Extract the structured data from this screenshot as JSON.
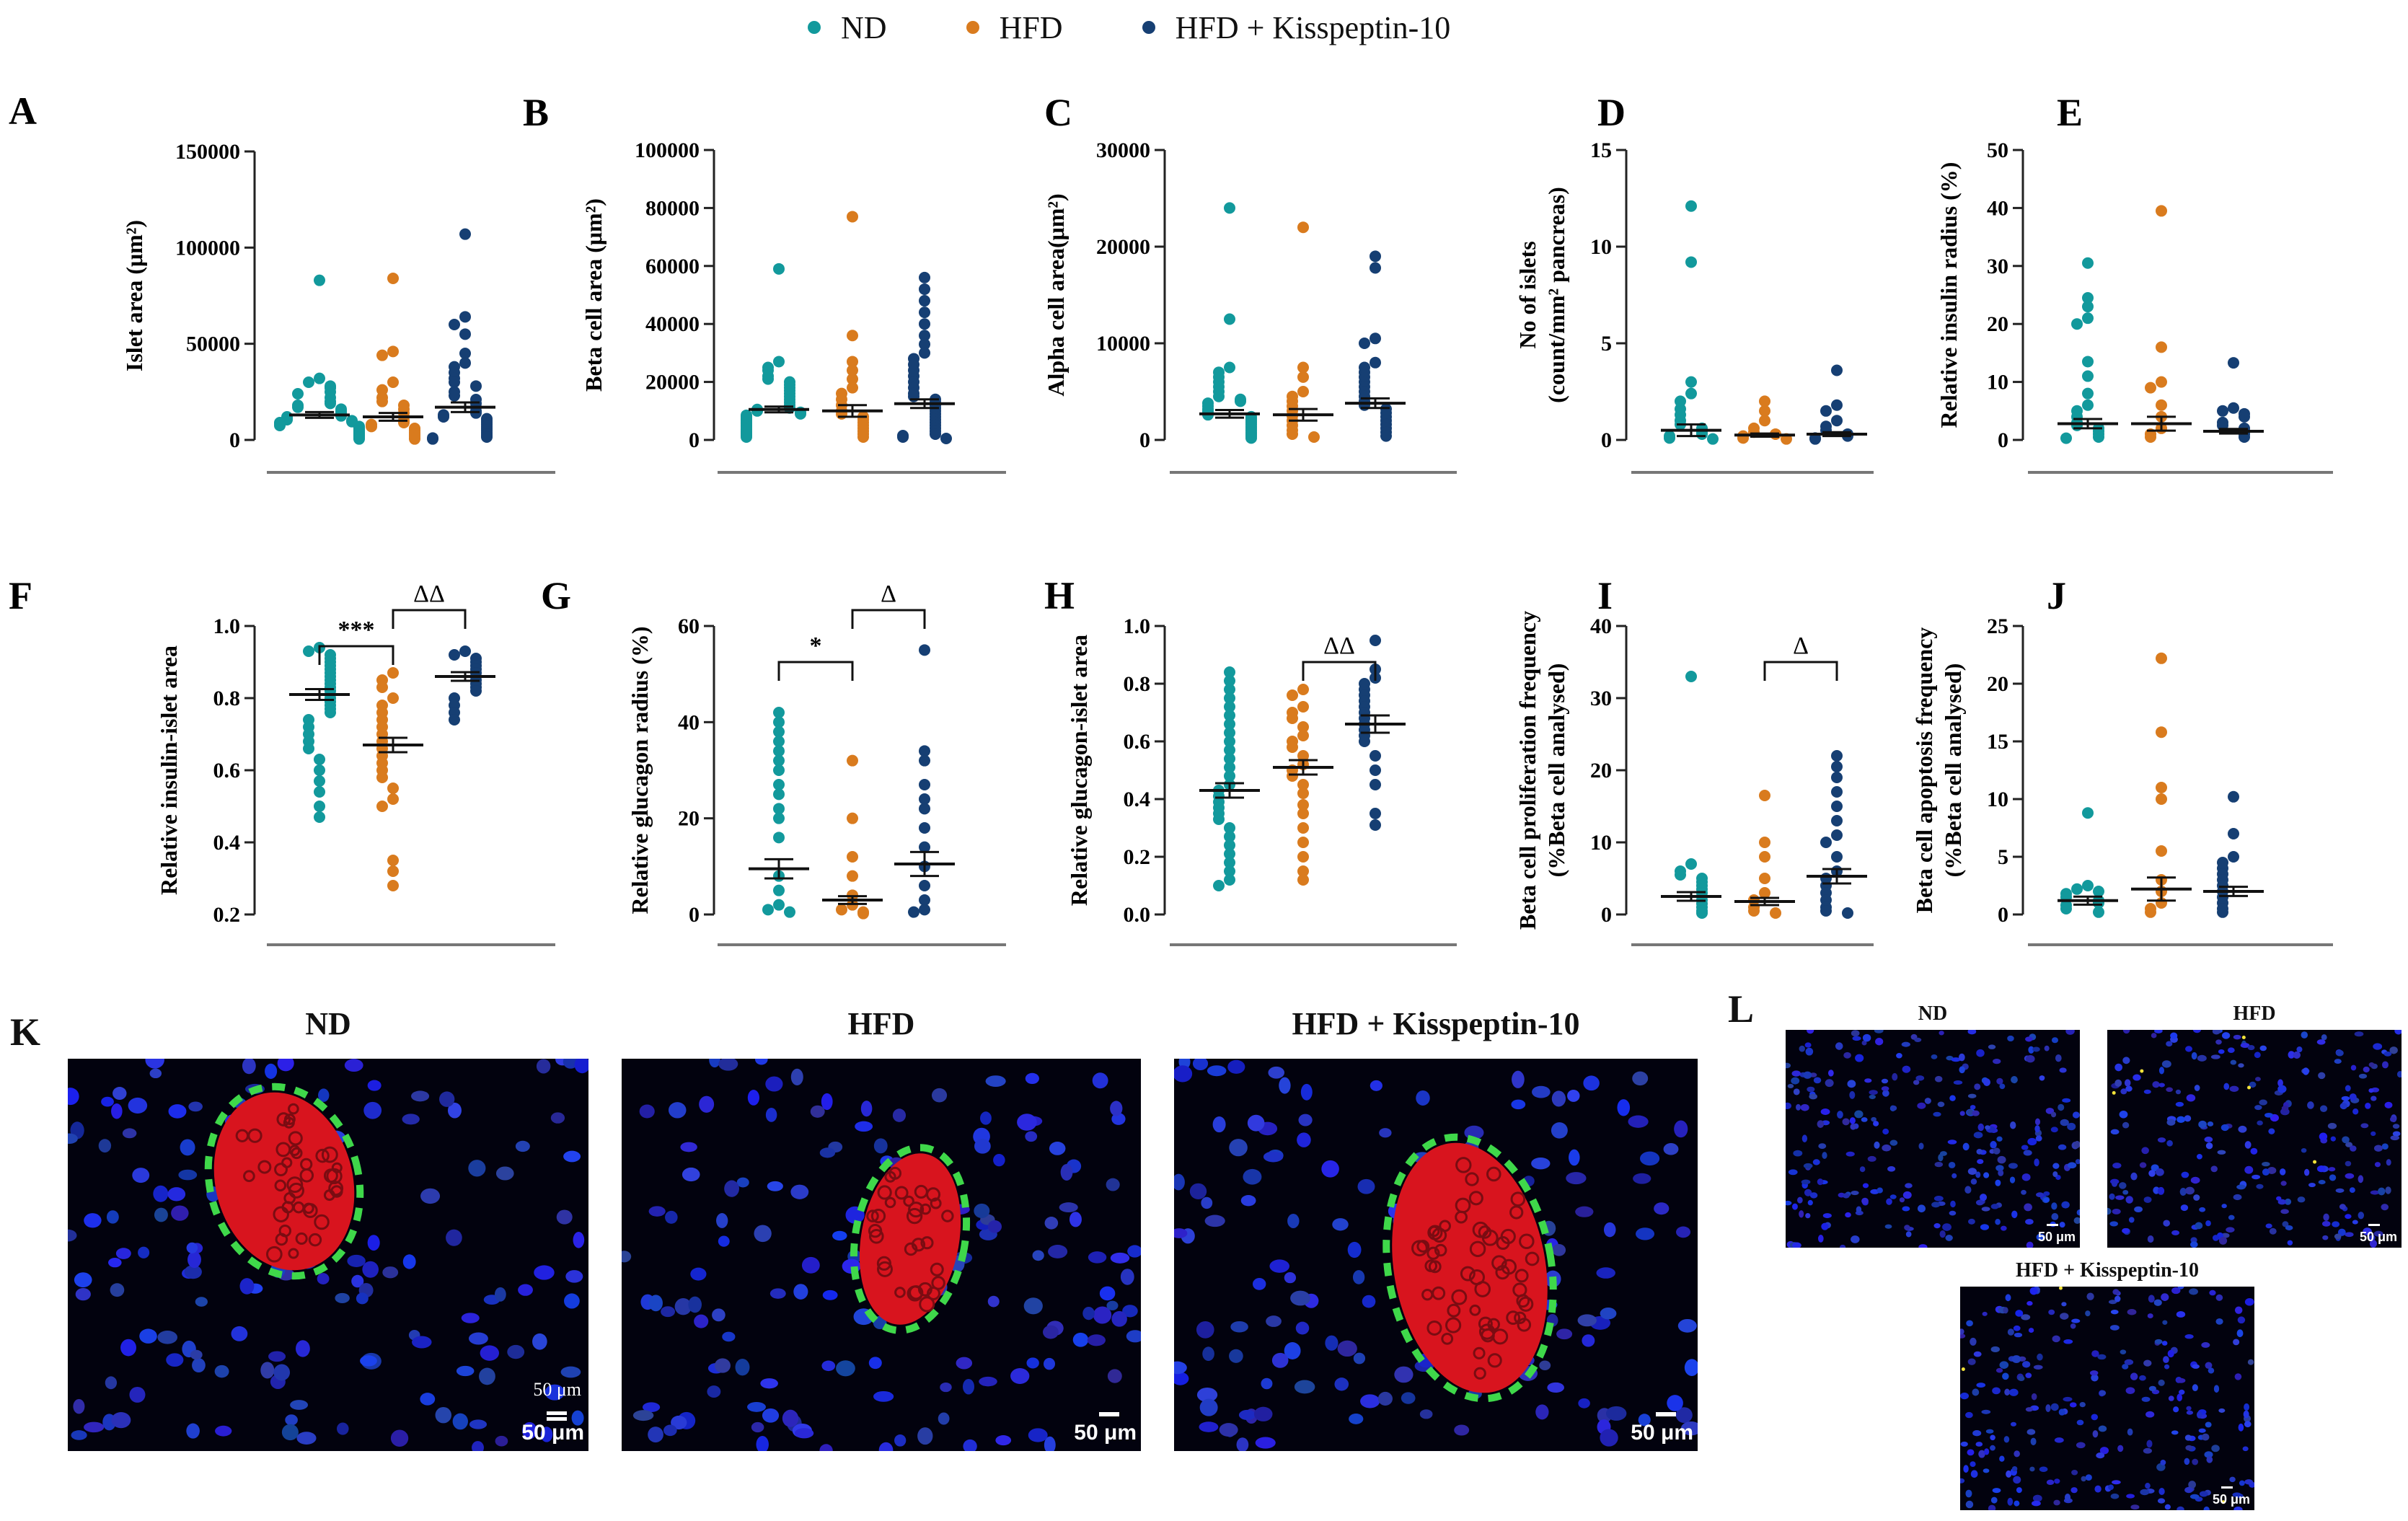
{
  "legend": {
    "items": [
      {
        "label": "ND",
        "color": "#12999c"
      },
      {
        "label": "HFD",
        "color": "#d97b1e"
      },
      {
        "label": "HFD + Kisspeptin-10",
        "color": "#163f73"
      }
    ]
  },
  "colors": {
    "nd": "#12999c",
    "hfd": "#d97b1e",
    "kp": "#163f73"
  },
  "chart_data": [
    {
      "panel": "A",
      "type": "scatter",
      "ylabel": "Islet area (μm²)",
      "ylim": [
        0,
        150000
      ],
      "ticks": [
        0,
        50000,
        100000,
        150000
      ],
      "tick_labels": [
        "0",
        "50000",
        "100000",
        "150000"
      ],
      "means": [
        13000,
        12000,
        17000
      ],
      "sem": [
        1500,
        2000,
        2500
      ],
      "groups": [
        [
          83000,
          32000,
          30000,
          28000,
          27000,
          25000,
          24000,
          22000,
          20000,
          19000,
          18000,
          17000,
          16000,
          15000,
          14000,
          13000,
          12500,
          12000,
          11000,
          10500,
          10000,
          9500,
          9000,
          8500,
          8000,
          7500,
          7000,
          6500,
          6000,
          5500,
          5000,
          4500,
          4000,
          3500,
          3000,
          2500,
          2000,
          1500,
          1000,
          500
        ],
        [
          84000,
          46000,
          44000,
          30000,
          26000,
          22000,
          20000,
          18000,
          16000,
          14000,
          12000,
          10000,
          9000,
          8000,
          7000,
          6000,
          5000,
          4000,
          3000,
          2000,
          1000,
          500
        ],
        [
          107000,
          64000,
          60000,
          55000,
          45000,
          40000,
          38000,
          35000,
          32000,
          30000,
          28000,
          25000,
          23000,
          21000,
          19000,
          17000,
          15000,
          14000,
          13000,
          12000,
          11000,
          10000,
          9000,
          8000,
          7000,
          6000,
          5000,
          4000,
          3000,
          2000,
          1500,
          1000,
          500
        ]
      ]
    },
    {
      "panel": "B",
      "type": "scatter",
      "ylabel": "Beta cell area (μm²)",
      "ylim": [
        0,
        100000
      ],
      "ticks": [
        0,
        20000,
        40000,
        60000,
        80000,
        100000
      ],
      "tick_labels": [
        "0",
        "20000",
        "40000",
        "60000",
        "80000",
        "100000"
      ],
      "means": [
        10500,
        10000,
        12500
      ],
      "sem": [
        1000,
        2000,
        1500
      ],
      "groups": [
        [
          59000,
          27000,
          25000,
          24000,
          22000,
          21000,
          20000,
          19000,
          18000,
          17000,
          16000,
          15000,
          14000,
          13000,
          12000,
          11000,
          10500,
          10000,
          9500,
          9000,
          8500,
          8000,
          7500,
          7000,
          6500,
          6000,
          5500,
          5000,
          4500,
          4000,
          3500,
          3000,
          2500,
          2000,
          1500,
          1000
        ],
        [
          77000,
          36000,
          27000,
          24000,
          21000,
          18000,
          16000,
          14000,
          12000,
          10000,
          9000,
          8000,
          7000,
          6000,
          5000,
          4000,
          3000,
          2000,
          1000
        ],
        [
          56000,
          52000,
          48000,
          44000,
          40000,
          36000,
          33000,
          30000,
          28000,
          26000,
          24000,
          22000,
          20000,
          18000,
          16000,
          15000,
          14000,
          13000,
          12000,
          11000,
          10000,
          9000,
          8000,
          7000,
          6000,
          5000,
          4000,
          3000,
          2000,
          1500,
          1000,
          500
        ]
      ]
    },
    {
      "panel": "C",
      "type": "scatter",
      "ylabel": "Alpha cell area(μm²)",
      "ylim": [
        0,
        30000
      ],
      "ticks": [
        0,
        10000,
        20000,
        30000
      ],
      "tick_labels": [
        "0",
        "10000",
        "20000",
        "30000"
      ],
      "means": [
        2700,
        2600,
        3800
      ],
      "sem": [
        400,
        600,
        500
      ],
      "groups": [
        [
          24000,
          12500,
          7500,
          7000,
          6500,
          6000,
          5500,
          5000,
          4500,
          4200,
          4000,
          3800,
          3500,
          3200,
          3000,
          2800,
          2600,
          2400,
          2200,
          2000,
          1800,
          1600,
          1400,
          1200,
          1000,
          800,
          600,
          400,
          200
        ],
        [
          22000,
          7500,
          6500,
          5000,
          4500,
          4000,
          3500,
          3000,
          2500,
          2000,
          1500,
          1000,
          600,
          300
        ],
        [
          19000,
          17800,
          10500,
          10000,
          8000,
          7500,
          7000,
          6500,
          6000,
          5500,
          5000,
          4500,
          4000,
          3600,
          3200,
          2800,
          2400,
          2000,
          1600,
          1200,
          800,
          400
        ]
      ]
    },
    {
      "panel": "D",
      "type": "scatter",
      "ylabel": "No of islets (count/mm² pancreas)",
      "ylim": [
        0,
        15
      ],
      "ticks": [
        0,
        5,
        10,
        15
      ],
      "tick_labels": [
        "0",
        "5",
        "10",
        "15"
      ],
      "means": [
        0.5,
        0.25,
        0.3
      ],
      "sem": [
        0.3,
        0.08,
        0.1
      ],
      "groups": [
        [
          12.1,
          9.2,
          3.0,
          2.4,
          2.0,
          1.6,
          1.3,
          1.0,
          0.8,
          0.6,
          0.4,
          0.3,
          0.2,
          0.1,
          0.05
        ],
        [
          2.0,
          1.5,
          1.0,
          0.6,
          0.4,
          0.3,
          0.2,
          0.1,
          0.05
        ],
        [
          3.6,
          1.8,
          1.5,
          1.0,
          0.7,
          0.5,
          0.3,
          0.2,
          0.1,
          0.05
        ]
      ]
    },
    {
      "panel": "E",
      "type": "scatter",
      "ylabel": "Relative insulin radius (%)",
      "ylim": [
        0,
        50
      ],
      "ticks": [
        0,
        10,
        20,
        30,
        40,
        50
      ],
      "tick_labels": [
        "0",
        "10",
        "20",
        "30",
        "40",
        "50"
      ],
      "means": [
        2.8,
        2.8,
        1.5
      ],
      "sem": [
        0.8,
        1.2,
        0.4
      ],
      "groups": [
        [
          30.5,
          24.5,
          23.0,
          21.0,
          20.0,
          13.5,
          11.0,
          8.0,
          6.0,
          5.0,
          4.0,
          3.0,
          2.5,
          2.0,
          1.5,
          1.0,
          0.5,
          0.3
        ],
        [
          39.5,
          16.0,
          10.0,
          9.0,
          6.0,
          4.0,
          2.0,
          1.0,
          0.5
        ],
        [
          13.3,
          5.5,
          5.0,
          4.5,
          4.0,
          3.0,
          2.5,
          2.0,
          1.5,
          1.0,
          0.5
        ]
      ]
    },
    {
      "panel": "F",
      "type": "scatter",
      "ylabel": "Relative insulin-islet area",
      "ylim": [
        0.2,
        1.0
      ],
      "ticks": [
        0.2,
        0.4,
        0.6,
        0.8,
        1.0
      ],
      "tick_labels": [
        "0.2",
        "0.4",
        "0.6",
        "0.8",
        "1.0"
      ],
      "means": [
        0.81,
        0.67,
        0.86
      ],
      "sem": [
        0.015,
        0.02,
        0.012
      ],
      "annotations": [
        {
          "from": 0,
          "to": 1,
          "label": "***",
          "level": 0
        },
        {
          "from": 1,
          "to": 2,
          "label": "ΔΔ",
          "level": 1
        }
      ],
      "groups": [
        [
          0.94,
          0.93,
          0.92,
          0.91,
          0.9,
          0.89,
          0.88,
          0.87,
          0.86,
          0.85,
          0.84,
          0.83,
          0.82,
          0.81,
          0.8,
          0.79,
          0.78,
          0.77,
          0.76,
          0.74,
          0.72,
          0.7,
          0.68,
          0.66,
          0.63,
          0.6,
          0.57,
          0.54,
          0.5,
          0.47
        ],
        [
          0.87,
          0.85,
          0.83,
          0.8,
          0.78,
          0.76,
          0.74,
          0.72,
          0.7,
          0.68,
          0.66,
          0.64,
          0.62,
          0.6,
          0.58,
          0.55,
          0.52,
          0.5,
          0.35,
          0.32,
          0.28
        ],
        [
          0.93,
          0.92,
          0.91,
          0.9,
          0.89,
          0.88,
          0.87,
          0.86,
          0.85,
          0.84,
          0.83,
          0.82,
          0.8,
          0.78,
          0.76,
          0.74
        ]
      ]
    },
    {
      "panel": "G",
      "type": "scatter",
      "ylabel": "Relative glucagon radius (%)",
      "ylim": [
        0,
        60
      ],
      "ticks": [
        0,
        20,
        40,
        60
      ],
      "tick_labels": [
        "0",
        "20",
        "40",
        "60"
      ],
      "means": [
        9.5,
        3.0,
        10.5
      ],
      "sem": [
        2.0,
        0.8,
        2.5
      ],
      "annotations": [
        {
          "from": 0,
          "to": 1,
          "label": "*",
          "level": 0
        },
        {
          "from": 1,
          "to": 2,
          "label": "Δ",
          "level": 1
        }
      ],
      "groups": [
        [
          42.0,
          40.0,
          38.0,
          36.0,
          34.0,
          32.0,
          30.0,
          27.0,
          25.0,
          22.0,
          20.0,
          16.0,
          8.0,
          5.0,
          2.0,
          1.0,
          0.5
        ],
        [
          32.0,
          20.0,
          12.0,
          8.0,
          4.0,
          2.0,
          1.0,
          0.5,
          0.2
        ],
        [
          55.0,
          34.0,
          32.0,
          27.0,
          24.0,
          22.0,
          18.0,
          14.0,
          10.0,
          6.0,
          3.0,
          1.0,
          0.5
        ]
      ]
    },
    {
      "panel": "H",
      "type": "scatter",
      "ylabel": "Relative glucagon-islet area",
      "ylim": [
        0.0,
        1.0
      ],
      "ticks": [
        0.0,
        0.2,
        0.4,
        0.6,
        0.8,
        1.0
      ],
      "tick_labels": [
        "0.0",
        "0.2",
        "0.4",
        "0.6",
        "0.8",
        "1.0"
      ],
      "means": [
        0.43,
        0.51,
        0.66
      ],
      "sem": [
        0.025,
        0.025,
        0.03
      ],
      "annotations": [
        {
          "from": 1,
          "to": 2,
          "label": "ΔΔ",
          "level": 0
        }
      ],
      "groups": [
        [
          0.84,
          0.81,
          0.78,
          0.75,
          0.72,
          0.69,
          0.66,
          0.63,
          0.6,
          0.57,
          0.54,
          0.51,
          0.48,
          0.45,
          0.43,
          0.41,
          0.39,
          0.37,
          0.35,
          0.33,
          0.3,
          0.27,
          0.24,
          0.21,
          0.18,
          0.15,
          0.12,
          0.1
        ],
        [
          0.78,
          0.76,
          0.72,
          0.7,
          0.68,
          0.65,
          0.62,
          0.6,
          0.58,
          0.55,
          0.52,
          0.5,
          0.48,
          0.45,
          0.42,
          0.38,
          0.35,
          0.3,
          0.25,
          0.2,
          0.15,
          0.12
        ],
        [
          0.95,
          0.85,
          0.82,
          0.8,
          0.78,
          0.76,
          0.74,
          0.72,
          0.7,
          0.68,
          0.66,
          0.64,
          0.62,
          0.6,
          0.55,
          0.5,
          0.45,
          0.35,
          0.31
        ]
      ]
    },
    {
      "panel": "I",
      "type": "scatter",
      "ylabel": "Beta cell proliferation frequency (%Beta cell analysed)",
      "ylim": [
        0,
        40
      ],
      "ticks": [
        0,
        10,
        20,
        30,
        40
      ],
      "tick_labels": [
        "0",
        "10",
        "20",
        "30",
        "40"
      ],
      "means": [
        2.5,
        1.8,
        5.3
      ],
      "sem": [
        0.6,
        0.5,
        1.0
      ],
      "annotations": [
        {
          "from": 1,
          "to": 2,
          "label": "Δ",
          "level": 0
        }
      ],
      "groups": [
        [
          33.0,
          7.0,
          6.0,
          5.5,
          5.0,
          4.5,
          4.0,
          3.5,
          3.0,
          2.5,
          2.0,
          1.5,
          1.0,
          0.5,
          0.2
        ],
        [
          16.5,
          10.0,
          8.0,
          5.0,
          3.0,
          2.0,
          1.0,
          0.5,
          0.2
        ],
        [
          22.0,
          20.5,
          19.0,
          17.0,
          15.0,
          13.0,
          11.0,
          10.0,
          8.0,
          6.0,
          5.0,
          4.0,
          3.0,
          2.0,
          1.0,
          0.5,
          0.2
        ]
      ]
    },
    {
      "panel": "J",
      "type": "scatter",
      "ylabel": "Beta cell apoptosis frequency (%Beta cell analysed)",
      "ylim": [
        0,
        25
      ],
      "ticks": [
        0,
        5,
        10,
        15,
        20,
        25
      ],
      "tick_labels": [
        "0",
        "5",
        "10",
        "15",
        "20",
        "25"
      ],
      "means": [
        1.2,
        2.2,
        2.0
      ],
      "sem": [
        0.35,
        1.0,
        0.4
      ],
      "groups": [
        [
          8.8,
          2.5,
          2.2,
          2.0,
          1.8,
          1.5,
          1.2,
          1.0,
          0.8,
          0.5,
          0.2
        ],
        [
          22.2,
          15.8,
          11.0,
          10.0,
          5.5,
          3.0,
          2.0,
          1.0,
          0.5,
          0.2
        ],
        [
          10.2,
          7.0,
          5.0,
          4.5,
          4.0,
          3.5,
          3.0,
          2.5,
          2.0,
          1.5,
          1.0,
          0.5,
          0.2
        ]
      ]
    }
  ],
  "panel_k": {
    "letter": "K",
    "scale_note": "50 μm",
    "images": [
      {
        "title": "ND",
        "scale": "50 μm"
      },
      {
        "title": "HFD",
        "scale": "50 μm"
      },
      {
        "title": "HFD + Kisspeptin-10",
        "scale": "50 μm"
      }
    ]
  },
  "panel_l": {
    "letter": "L",
    "images": [
      {
        "title": "ND",
        "scale": "50 μm"
      },
      {
        "title": "HFD",
        "scale": "50 μm"
      },
      {
        "title": "HFD + Kisspeptin-10",
        "scale": "50 μm"
      }
    ]
  }
}
